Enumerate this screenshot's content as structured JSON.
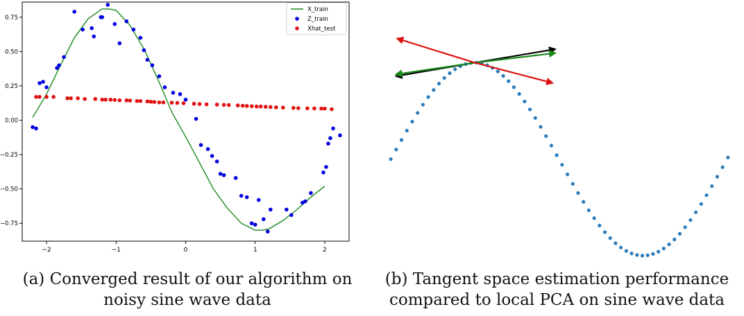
{
  "captions": {
    "a": "(a) Converged result of our algorithm on noisy sine wave data",
    "b": "(b) Tangent space estimation performance compared to local PCA on sine wave data"
  },
  "chart_data": [
    {
      "id": "a",
      "type": "scatter",
      "xlim": [
        -2.35,
        2.35
      ],
      "ylim": [
        -0.88,
        0.86
      ],
      "xticks": [
        -2,
        -1,
        0,
        1,
        2
      ],
      "yticks": [
        -0.75,
        -0.5,
        -0.25,
        0.0,
        0.25,
        0.5,
        0.75
      ],
      "ytick_labels": [
        "-0.75",
        "-0.50",
        "-0.25",
        "0.00",
        "0.25",
        "0.50",
        "0.75"
      ],
      "legend_position": "top-right",
      "colors": {
        "X_train": "#1a8a1a",
        "Z_train": "#0000e0",
        "Xhat_test": "#e01010"
      },
      "series": [
        {
          "name": "X_train",
          "kind": "line",
          "x": [
            -2.2,
            -2.0,
            -1.8,
            -1.6,
            -1.4,
            -1.2,
            -1.1,
            -1.0,
            -0.8,
            -0.6,
            -0.4,
            -0.2,
            0.0,
            0.2,
            0.4,
            0.6,
            0.8,
            1.0,
            1.1,
            1.2,
            1.4,
            1.6,
            1.8,
            2.0
          ],
          "y": [
            0.02,
            0.19,
            0.4,
            0.6,
            0.74,
            0.81,
            0.81,
            0.8,
            0.69,
            0.52,
            0.3,
            0.06,
            -0.12,
            -0.31,
            -0.5,
            -0.64,
            -0.75,
            -0.8,
            -0.8,
            -0.79,
            -0.73,
            -0.65,
            -0.56,
            -0.48
          ]
        },
        {
          "name": "Z_train",
          "kind": "points",
          "x": [
            -2.2,
            -2.15,
            -2.1,
            -2.05,
            -2.0,
            -1.85,
            -1.82,
            -1.75,
            -1.6,
            -1.48,
            -1.35,
            -1.32,
            -1.22,
            -1.2,
            -1.12,
            -1.02,
            -0.95,
            -0.85,
            -0.75,
            -0.65,
            -0.6,
            -0.55,
            -0.48,
            -0.38,
            -0.3,
            -0.18,
            -0.08,
            0.0,
            0.15,
            0.22,
            0.32,
            0.38,
            0.45,
            0.5,
            0.55,
            0.72,
            0.8,
            0.88,
            0.95,
            1.0,
            1.05,
            1.12,
            1.18,
            1.22,
            1.45,
            1.52,
            1.68,
            1.72,
            1.8,
            1.98,
            2.02,
            2.05,
            2.08,
            2.12,
            2.22
          ],
          "y": [
            -0.05,
            -0.06,
            0.27,
            0.28,
            0.24,
            0.38,
            0.4,
            0.46,
            0.79,
            0.66,
            0.67,
            0.61,
            0.75,
            0.75,
            0.84,
            0.7,
            0.56,
            0.72,
            0.66,
            0.6,
            0.51,
            0.44,
            0.4,
            0.32,
            0.24,
            0.2,
            0.19,
            0.15,
            0.01,
            -0.18,
            -0.21,
            -0.26,
            -0.3,
            -0.39,
            -0.4,
            -0.42,
            -0.55,
            -0.56,
            -0.75,
            -0.76,
            -0.58,
            -0.72,
            -0.81,
            -0.65,
            -0.65,
            -0.69,
            -0.6,
            -0.59,
            -0.53,
            -0.38,
            -0.34,
            -0.17,
            -0.13,
            -0.06,
            -0.11
          ]
        },
        {
          "name": "Xhat_test",
          "kind": "points",
          "x": [
            -2.15,
            -2.1,
            -2.0,
            -1.9,
            -1.7,
            -1.65,
            -1.55,
            -1.45,
            -1.3,
            -1.2,
            -1.15,
            -1.08,
            -1.02,
            -0.95,
            -0.85,
            -0.8,
            -0.7,
            -0.65,
            -0.55,
            -0.5,
            -0.45,
            -0.38,
            -0.32,
            -0.2,
            -0.12,
            -0.03,
            0.12,
            0.2,
            0.3,
            0.45,
            0.55,
            0.62,
            0.75,
            0.82,
            0.88,
            0.95,
            1.02,
            1.08,
            1.15,
            1.22,
            1.3,
            1.4,
            1.55,
            1.62,
            1.75,
            1.85,
            1.95,
            2.0,
            2.1
          ],
          "y": [
            0.17,
            0.17,
            0.17,
            0.17,
            0.16,
            0.16,
            0.16,
            0.155,
            0.155,
            0.15,
            0.15,
            0.15,
            0.148,
            0.145,
            0.145,
            0.143,
            0.14,
            0.14,
            0.137,
            0.135,
            0.133,
            0.13,
            0.13,
            0.128,
            0.126,
            0.124,
            0.12,
            0.118,
            0.116,
            0.114,
            0.112,
            0.111,
            0.108,
            0.106,
            0.104,
            0.102,
            0.1,
            0.1,
            0.098,
            0.096,
            0.094,
            0.092,
            0.09,
            0.088,
            0.087,
            0.086,
            0.085,
            0.085,
            0.08
          ]
        }
      ]
    },
    {
      "id": "b",
      "type": "scatter",
      "xlim": [
        -0.3,
        6.6
      ],
      "ylim": [
        -1.08,
        1.65
      ],
      "axes_visible": false,
      "colors": {
        "points": "#2b7bba",
        "pca": "#1a8a1a",
        "ours": "#000000",
        "normal": "#e01010"
      },
      "series": [
        {
          "name": "",
          "kind": "sine-points",
          "x_start": 0.0,
          "x_end": 6.3,
          "count": 64,
          "amplitude": 1.0
        }
      ],
      "arrows": [
        {
          "color": "black",
          "from": [
            1.57,
            1.0
          ],
          "to": [
            3.07,
            1.14
          ]
        },
        {
          "color": "black",
          "from": [
            1.57,
            1.0
          ],
          "to": [
            0.1,
            0.86
          ]
        },
        {
          "color": "green",
          "from": [
            1.57,
            1.0
          ],
          "to": [
            3.07,
            1.1
          ]
        },
        {
          "color": "green",
          "from": [
            1.57,
            1.0
          ],
          "to": [
            0.1,
            0.88
          ]
        },
        {
          "color": "red",
          "from": [
            1.57,
            1.0
          ],
          "to": [
            3.02,
            0.79
          ]
        },
        {
          "color": "red",
          "from": [
            1.57,
            1.0
          ],
          "to": [
            0.12,
            1.25
          ]
        }
      ]
    }
  ]
}
